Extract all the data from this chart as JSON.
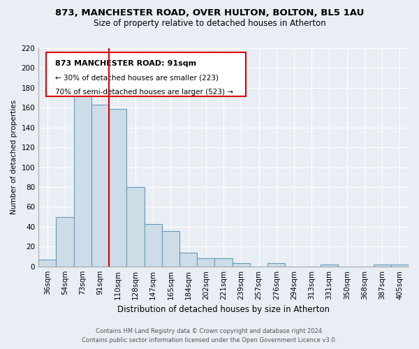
{
  "title1": "873, MANCHESTER ROAD, OVER HULTON, BOLTON, BL5 1AU",
  "title2": "Size of property relative to detached houses in Atherton",
  "xlabel": "Distribution of detached houses by size in Atherton",
  "ylabel": "Number of detached properties",
  "categories": [
    "36sqm",
    "54sqm",
    "73sqm",
    "91sqm",
    "110sqm",
    "128sqm",
    "147sqm",
    "165sqm",
    "184sqm",
    "202sqm",
    "221sqm",
    "239sqm",
    "257sqm",
    "276sqm",
    "294sqm",
    "313sqm",
    "331sqm",
    "350sqm",
    "368sqm",
    "387sqm",
    "405sqm"
  ],
  "values": [
    7,
    50,
    173,
    163,
    159,
    80,
    43,
    36,
    14,
    8,
    8,
    3,
    0,
    3,
    0,
    0,
    2,
    0,
    0,
    2,
    2
  ],
  "bar_color": "#ccdde8",
  "bar_edge_color": "#6699bb",
  "vline_color": "#dd0000",
  "ylim": [
    0,
    220
  ],
  "yticks": [
    0,
    20,
    40,
    60,
    80,
    100,
    120,
    140,
    160,
    180,
    200,
    220
  ],
  "annotation_title": "873 MANCHESTER ROAD: 91sqm",
  "annotation_line1": "← 30% of detached houses are smaller (223)",
  "annotation_line2": "70% of semi-detached houses are larger (523) →",
  "footer1": "Contains HM Land Registry data © Crown copyright and database right 2024.",
  "footer2": "Contains public sector information licensed under the Open Government Licence v3.0.",
  "background_color": "#e8eef4",
  "grid_color": "#ffffff",
  "title1_fontsize": 9.5,
  "title2_fontsize": 8.5,
  "ylabel_fontsize": 7.5,
  "xlabel_fontsize": 8.5,
  "tick_fontsize": 7.5,
  "footer_fontsize": 6.0
}
